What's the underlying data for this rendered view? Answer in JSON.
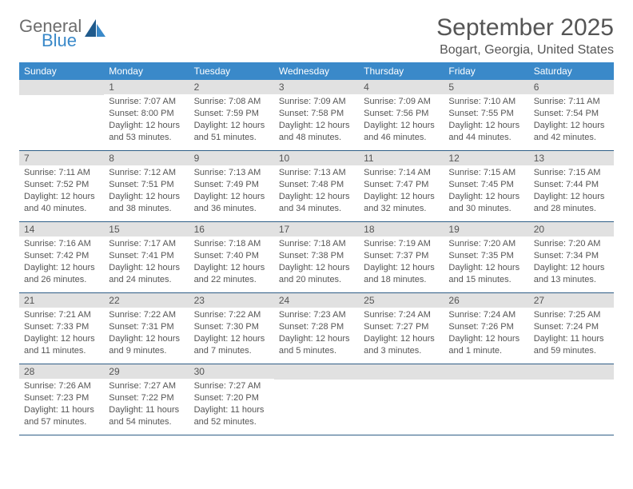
{
  "logo": {
    "general": "General",
    "blue": "Blue"
  },
  "title": "September 2025",
  "location": "Bogart, Georgia, United States",
  "weekdays": [
    "Sunday",
    "Monday",
    "Tuesday",
    "Wednesday",
    "Thursday",
    "Friday",
    "Saturday"
  ],
  "colors": {
    "header_bg": "#3a89c9",
    "header_text": "#ffffff",
    "daynum_bg": "#e1e1e1",
    "text": "#555555",
    "rule": "#2f5e87"
  },
  "weeks": [
    [
      {
        "blank": true
      },
      {
        "n": "1",
        "sunrise": "7:07 AM",
        "sunset": "8:00 PM",
        "daylight": "12 hours and 53 minutes."
      },
      {
        "n": "2",
        "sunrise": "7:08 AM",
        "sunset": "7:59 PM",
        "daylight": "12 hours and 51 minutes."
      },
      {
        "n": "3",
        "sunrise": "7:09 AM",
        "sunset": "7:58 PM",
        "daylight": "12 hours and 48 minutes."
      },
      {
        "n": "4",
        "sunrise": "7:09 AM",
        "sunset": "7:56 PM",
        "daylight": "12 hours and 46 minutes."
      },
      {
        "n": "5",
        "sunrise": "7:10 AM",
        "sunset": "7:55 PM",
        "daylight": "12 hours and 44 minutes."
      },
      {
        "n": "6",
        "sunrise": "7:11 AM",
        "sunset": "7:54 PM",
        "daylight": "12 hours and 42 minutes."
      }
    ],
    [
      {
        "n": "7",
        "sunrise": "7:11 AM",
        "sunset": "7:52 PM",
        "daylight": "12 hours and 40 minutes."
      },
      {
        "n": "8",
        "sunrise": "7:12 AM",
        "sunset": "7:51 PM",
        "daylight": "12 hours and 38 minutes."
      },
      {
        "n": "9",
        "sunrise": "7:13 AM",
        "sunset": "7:49 PM",
        "daylight": "12 hours and 36 minutes."
      },
      {
        "n": "10",
        "sunrise": "7:13 AM",
        "sunset": "7:48 PM",
        "daylight": "12 hours and 34 minutes."
      },
      {
        "n": "11",
        "sunrise": "7:14 AM",
        "sunset": "7:47 PM",
        "daylight": "12 hours and 32 minutes."
      },
      {
        "n": "12",
        "sunrise": "7:15 AM",
        "sunset": "7:45 PM",
        "daylight": "12 hours and 30 minutes."
      },
      {
        "n": "13",
        "sunrise": "7:15 AM",
        "sunset": "7:44 PM",
        "daylight": "12 hours and 28 minutes."
      }
    ],
    [
      {
        "n": "14",
        "sunrise": "7:16 AM",
        "sunset": "7:42 PM",
        "daylight": "12 hours and 26 minutes."
      },
      {
        "n": "15",
        "sunrise": "7:17 AM",
        "sunset": "7:41 PM",
        "daylight": "12 hours and 24 minutes."
      },
      {
        "n": "16",
        "sunrise": "7:18 AM",
        "sunset": "7:40 PM",
        "daylight": "12 hours and 22 minutes."
      },
      {
        "n": "17",
        "sunrise": "7:18 AM",
        "sunset": "7:38 PM",
        "daylight": "12 hours and 20 minutes."
      },
      {
        "n": "18",
        "sunrise": "7:19 AM",
        "sunset": "7:37 PM",
        "daylight": "12 hours and 18 minutes."
      },
      {
        "n": "19",
        "sunrise": "7:20 AM",
        "sunset": "7:35 PM",
        "daylight": "12 hours and 15 minutes."
      },
      {
        "n": "20",
        "sunrise": "7:20 AM",
        "sunset": "7:34 PM",
        "daylight": "12 hours and 13 minutes."
      }
    ],
    [
      {
        "n": "21",
        "sunrise": "7:21 AM",
        "sunset": "7:33 PM",
        "daylight": "12 hours and 11 minutes."
      },
      {
        "n": "22",
        "sunrise": "7:22 AM",
        "sunset": "7:31 PM",
        "daylight": "12 hours and 9 minutes."
      },
      {
        "n": "23",
        "sunrise": "7:22 AM",
        "sunset": "7:30 PM",
        "daylight": "12 hours and 7 minutes."
      },
      {
        "n": "24",
        "sunrise": "7:23 AM",
        "sunset": "7:28 PM",
        "daylight": "12 hours and 5 minutes."
      },
      {
        "n": "25",
        "sunrise": "7:24 AM",
        "sunset": "7:27 PM",
        "daylight": "12 hours and 3 minutes."
      },
      {
        "n": "26",
        "sunrise": "7:24 AM",
        "sunset": "7:26 PM",
        "daylight": "12 hours and 1 minute."
      },
      {
        "n": "27",
        "sunrise": "7:25 AM",
        "sunset": "7:24 PM",
        "daylight": "11 hours and 59 minutes."
      }
    ],
    [
      {
        "n": "28",
        "sunrise": "7:26 AM",
        "sunset": "7:23 PM",
        "daylight": "11 hours and 57 minutes."
      },
      {
        "n": "29",
        "sunrise": "7:27 AM",
        "sunset": "7:22 PM",
        "daylight": "11 hours and 54 minutes."
      },
      {
        "n": "30",
        "sunrise": "7:27 AM",
        "sunset": "7:20 PM",
        "daylight": "11 hours and 52 minutes."
      },
      {
        "blank": true
      },
      {
        "blank": true
      },
      {
        "blank": true
      },
      {
        "blank": true
      }
    ]
  ],
  "labels": {
    "sunrise": "Sunrise: ",
    "sunset": "Sunset: ",
    "daylight": "Daylight: "
  }
}
